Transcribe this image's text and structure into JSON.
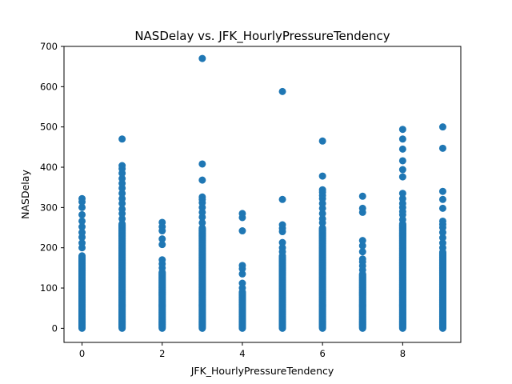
{
  "chart_data": {
    "type": "scatter",
    "title": "NASDelay vs. JFK_HourlyPressureTendency",
    "xlabel": "JFK_HourlyPressureTendency",
    "ylabel": "NASDelay",
    "xlim": [
      -0.45,
      9.45
    ],
    "ylim": [
      -35,
      700
    ],
    "xticks": [
      0,
      2,
      4,
      6,
      8
    ],
    "yticks": [
      0,
      100,
      200,
      300,
      400,
      500,
      600,
      700
    ],
    "marker_color": "#1f77b4",
    "grid": false,
    "legend": "none",
    "series": [
      {
        "columns": [
          {
            "x": 0,
            "dense_max": 180,
            "outliers": [
              200,
              212,
              226,
              238,
              252,
              266,
              282,
              300,
              314,
              322
            ]
          },
          {
            "x": 1,
            "dense_max": 260,
            "outliers": [
              272,
              285,
              296,
              310,
              322,
              335,
              348,
              360,
              372,
              385,
              396,
              404,
              470
            ]
          },
          {
            "x": 2,
            "dense_max": 140,
            "outliers": [
              150,
              160,
              170,
              208,
              222,
              242,
              252,
              263
            ]
          },
          {
            "x": 3,
            "dense_max": 250,
            "outliers": [
              262,
              276,
              288,
              300,
              312,
              320,
              326,
              368,
              408,
              670
            ]
          },
          {
            "x": 4,
            "dense_max": 90,
            "outliers": [
              100,
              112,
              135,
              148,
              156,
              242,
              275,
              285
            ]
          },
          {
            "x": 5,
            "dense_max": 180,
            "outliers": [
              190,
              200,
              213,
              240,
              248,
              257,
              320,
              588
            ]
          },
          {
            "x": 6,
            "dense_max": 250,
            "outliers": [
              262,
              272,
              285,
              298,
              310,
              322,
              330,
              338,
              344,
              378,
              465
            ]
          },
          {
            "x": 7,
            "dense_max": 135,
            "outliers": [
              145,
              155,
              165,
              172,
              190,
              205,
              218,
              288,
              298,
              328
            ]
          },
          {
            "x": 8,
            "dense_max": 260,
            "outliers": [
              270,
              282,
              290,
              300,
              310,
              322,
              335,
              376,
              394,
              416,
              445,
              470,
              494
            ]
          },
          {
            "x": 9,
            "dense_max": 190,
            "outliers": [
              200,
              212,
              225,
              238,
              250,
              258,
              266,
              298,
              320,
              340,
              447,
              500
            ]
          }
        ]
      }
    ]
  }
}
